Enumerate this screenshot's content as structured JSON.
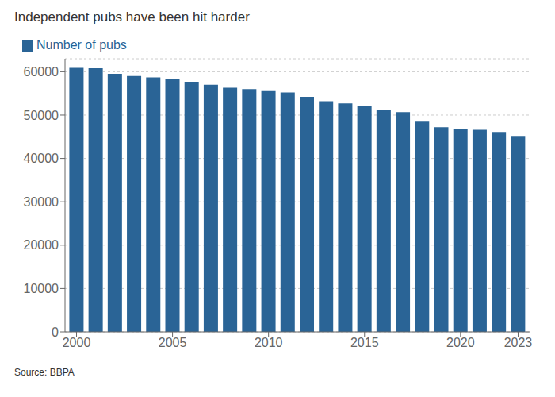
{
  "chart_data": {
    "type": "bar",
    "title": "Independent pubs have been hit harder",
    "x": [
      2000,
      2001,
      2002,
      2003,
      2004,
      2005,
      2006,
      2007,
      2008,
      2009,
      2010,
      2011,
      2012,
      2013,
      2014,
      2015,
      2016,
      2017,
      2018,
      2019,
      2020,
      2021,
      2022,
      2023
    ],
    "series": [
      {
        "name": "Number of pubs",
        "color": "#2a6496",
        "values": [
          60900,
          60800,
          59500,
          59000,
          58700,
          58300,
          57700,
          57000,
          56300,
          56000,
          55700,
          55200,
          54200,
          53200,
          52700,
          52200,
          51300,
          50700,
          48500,
          47200,
          46900,
          46600,
          46100,
          45200
        ]
      }
    ],
    "xlim": [
      1999.4,
      2023.6
    ],
    "xticks": [
      2000,
      2005,
      2010,
      2015,
      2020,
      2023
    ],
    "ylim": [
      0,
      63000
    ],
    "yticks": [
      0,
      10000,
      20000,
      30000,
      40000,
      50000,
      60000
    ],
    "grid": true,
    "legend": "upper left",
    "annotations": [
      "Source: BBPA"
    ]
  }
}
